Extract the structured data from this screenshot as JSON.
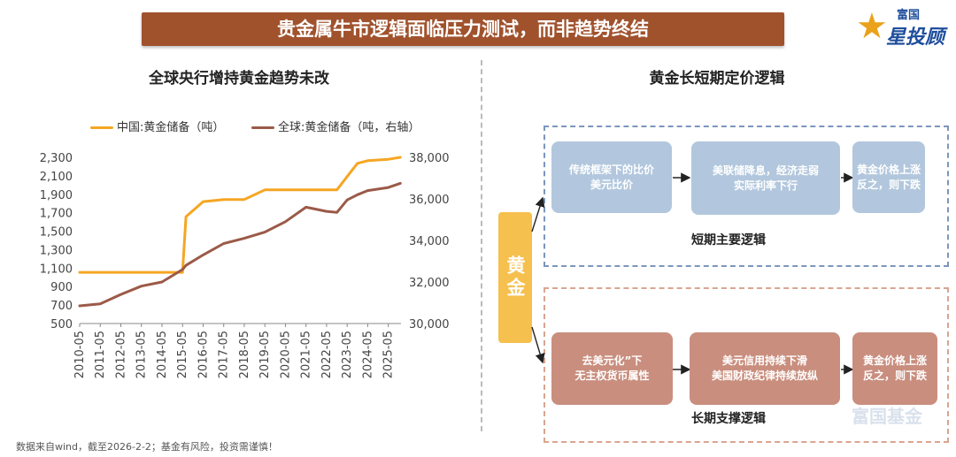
{
  "banner": {
    "title": "贵金属牛市逻辑面临压力测试，而非趋势终结"
  },
  "logo": {
    "line1": "富国",
    "line2": "星投顾",
    "watermark": "富国基金"
  },
  "left_panel": {
    "title": "全球央行增持黄金趋势未改"
  },
  "right_panel": {
    "title": "黄金长短期定价逻辑"
  },
  "footnote": "数据来自wind，截至2026-2-2；基金有风险，投资需谨慎！",
  "colors": {
    "banner": "#a0522d",
    "china_line": "#f5a623",
    "global_line": "#9b5a48",
    "gold": "#f6c04e",
    "blue_node": "#b2c7dd",
    "brown_node": "#c98e7e"
  },
  "chart_data": {
    "type": "line",
    "title": "全球央行增持黄金趋势未改",
    "x": [
      "2010-05",
      "2011-05",
      "2012-05",
      "2013-05",
      "2014-05",
      "2015-05",
      "2015-07",
      "2016-05",
      "2017-05",
      "2018-05",
      "2019-05",
      "2020-05",
      "2021-05",
      "2022-05",
      "2022-11",
      "2023-05",
      "2023-11",
      "2024-05",
      "2025-05",
      "2025-12"
    ],
    "x_ticks": [
      "2010-05",
      "2011-05",
      "2012-05",
      "2013-05",
      "2014-05",
      "2015-05",
      "2016-05",
      "2017-05",
      "2018-05",
      "2019-05",
      "2020-05",
      "2021-05",
      "2022-05",
      "2023-05",
      "2024-05",
      "2025-05"
    ],
    "y_left_ticks": [
      "2,300",
      "2,100",
      "1,900",
      "1,700",
      "1,500",
      "1,300",
      "1,100",
      "900",
      "700",
      "500"
    ],
    "y_right_ticks": [
      "38,000",
      "36,000",
      "34,000",
      "32,000",
      "30,000"
    ],
    "ylim_left": [
      500,
      2300
    ],
    "ylim_right": [
      30000,
      38000
    ],
    "series": [
      {
        "name": "中国:黄金储备（吨）",
        "axis": "left",
        "values": [
          1054,
          1054,
          1054,
          1054,
          1054,
          1054,
          1658,
          1820,
          1843,
          1843,
          1948,
          1948,
          1948,
          1948,
          1948,
          2092,
          2235,
          2264,
          2279,
          2300
        ]
      },
      {
        "name": "全球:黄金储备（吨，右轴）",
        "axis": "right",
        "values": [
          30850,
          30950,
          31400,
          31800,
          32000,
          32600,
          32800,
          33300,
          33850,
          34100,
          34400,
          34900,
          35600,
          35400,
          35350,
          35950,
          36200,
          36400,
          36550,
          36750
        ]
      }
    ]
  },
  "diagram": {
    "center_label": "黄金",
    "short_term": {
      "label": "短期主要逻辑",
      "nodes": [
        "传统框架下的比价\n美元比价",
        "美联储降息，经济走弱\n实际利率下行",
        "黄金价格上涨\n反之，则下跌"
      ]
    },
    "long_term": {
      "label": "长期支撑逻辑",
      "nodes": [
        "去美元化”下\n无主权货币属性",
        "美元信用持续下滑\n美国财政纪律持续放纵",
        "黄金价格上涨\n反之，则下跌"
      ]
    }
  }
}
